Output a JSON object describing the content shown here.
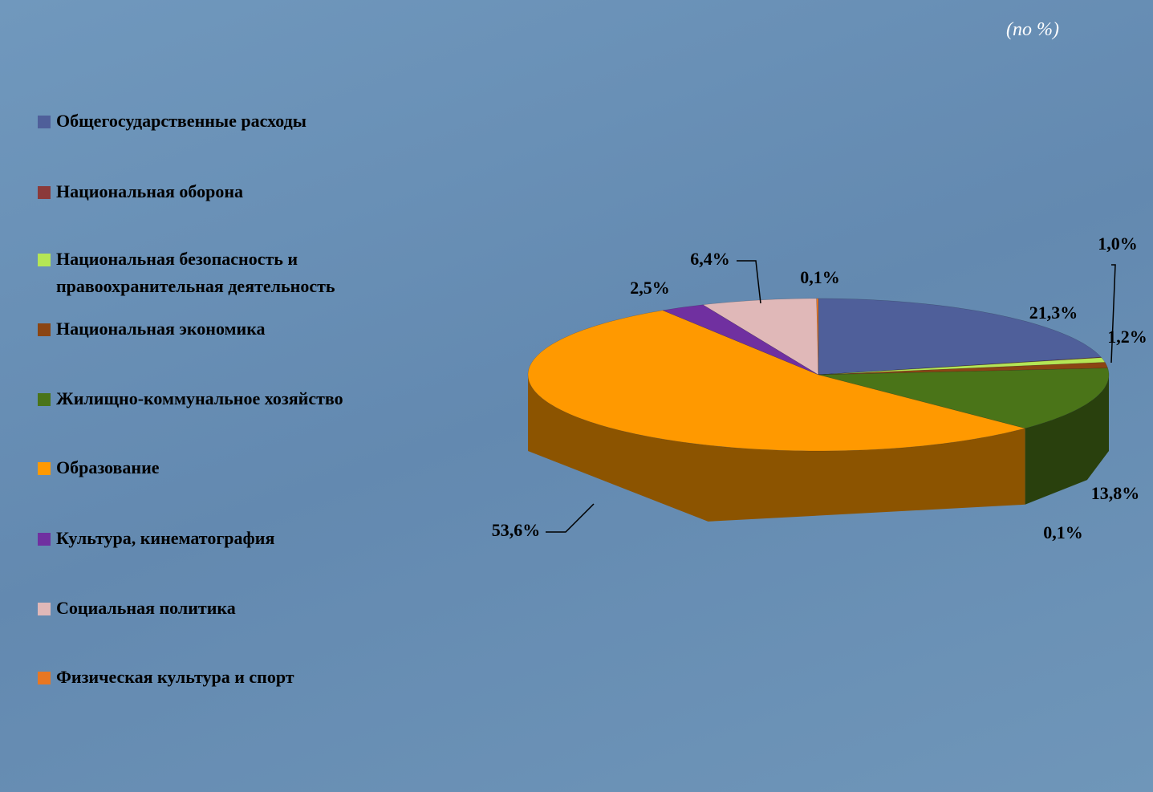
{
  "chart_data": {
    "type": "pie3d",
    "subtitle": "(по %)",
    "categories": [
      "Общегосударственные расходы",
      "Национальная оборона",
      "Национальная безопасность и правоохранительная деятельность",
      "Национальная экономика",
      "Жилищно-коммунальное хозяйство",
      "Образование",
      "Культура, кинематография",
      "Социальная политика",
      "Физическая культура и спорт"
    ],
    "values": [
      21.3,
      0.1,
      1.0,
      1.2,
      13.8,
      53.6,
      2.5,
      6.4,
      0.1
    ],
    "value_labels": [
      "21,3%",
      "0,1%",
      "1,0%",
      "1,2%",
      "13,8%",
      "53,6%",
      "2,5%",
      "6,4%",
      "0,1%"
    ],
    "colors": [
      "#4f5f9a",
      "#8b3a3a",
      "#b5e655",
      "#8b4513",
      "#4a7418",
      "#ff9900",
      "#7030a0",
      "#e0b8b8",
      "#e87722"
    ],
    "legend": "left"
  }
}
